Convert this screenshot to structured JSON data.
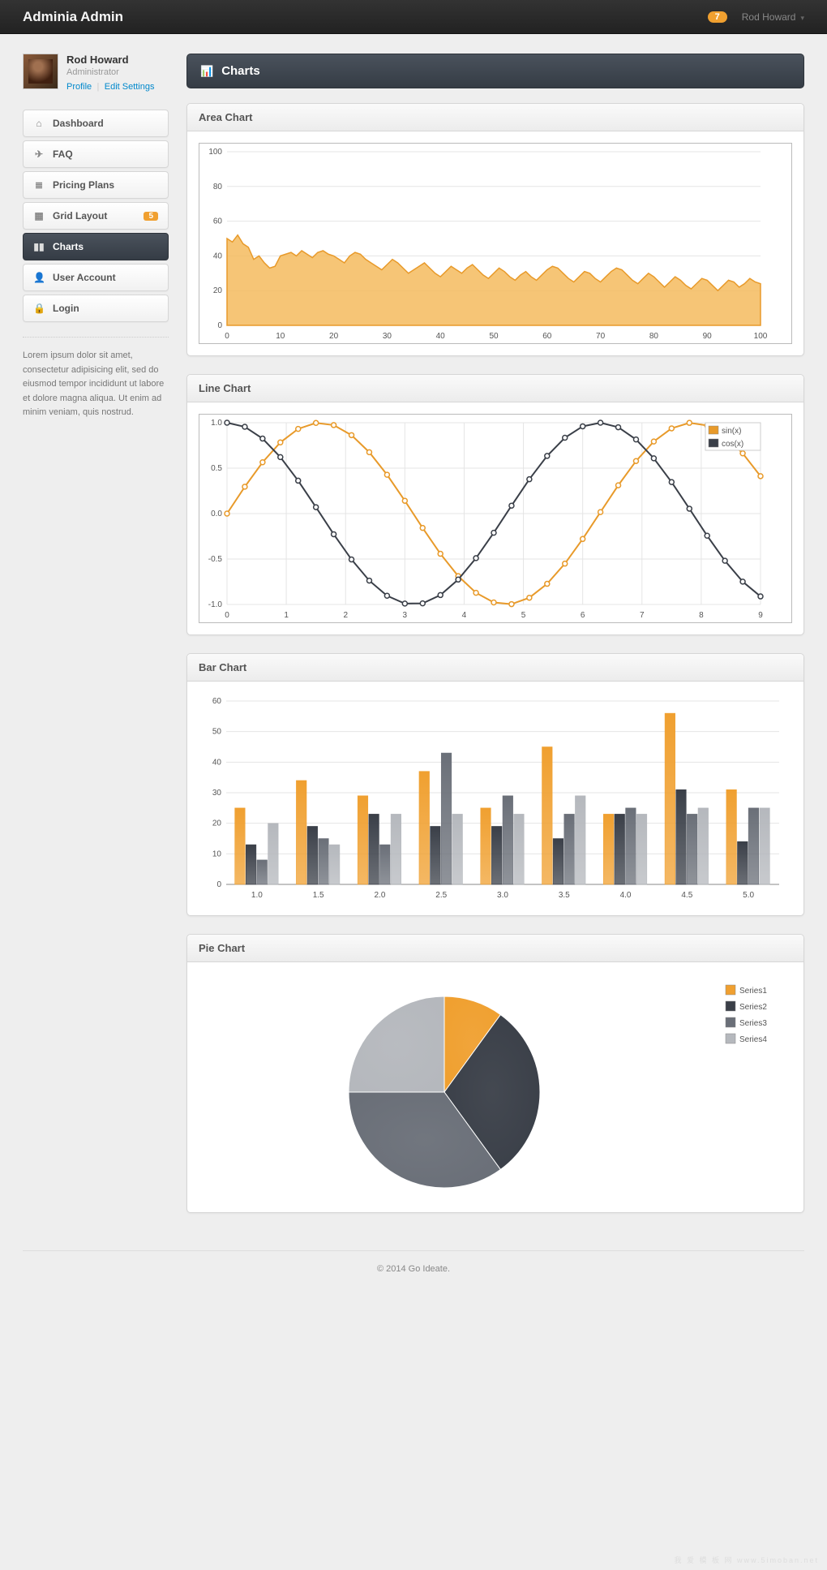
{
  "topbar": {
    "brand": "Adminia Admin",
    "badge": "7",
    "user": "Rod Howard"
  },
  "profile": {
    "name": "Rod Howard",
    "role": "Administrator",
    "link1": "Profile",
    "link2": "Edit Settings"
  },
  "nav": [
    {
      "icon": "⌂",
      "label": "Dashboard"
    },
    {
      "icon": "✈",
      "label": "FAQ"
    },
    {
      "icon": "≣",
      "label": "Pricing Plans"
    },
    {
      "icon": "▦",
      "label": "Grid Layout",
      "badge": "5"
    },
    {
      "icon": "▮▮",
      "label": "Charts",
      "active": true
    },
    {
      "icon": "👤",
      "label": "User Account"
    },
    {
      "icon": "🔒",
      "label": "Login"
    }
  ],
  "side_text": "Lorem ipsum dolor sit amet, consectetur adipisicing elit, sed do eiusmod tempor incididunt ut labore et dolore magna aliqua. Ut enim ad minim veniam, quis nostrud.",
  "page_title": "Charts",
  "area_chart": {
    "title": "Area Chart",
    "type": "area",
    "xlim": [
      0,
      100
    ],
    "ylim": [
      0,
      100
    ],
    "xtick_step": 10,
    "ytick_step": 20,
    "fill_color": "#f5bb5e",
    "stroke_color": "#e89a2a",
    "grid_color": "#e5e5e5",
    "background_color": "#ffffff",
    "data": [
      50,
      48,
      52,
      47,
      45,
      38,
      40,
      36,
      33,
      34,
      40,
      41,
      42,
      40,
      43,
      41,
      39,
      42,
      43,
      41,
      40,
      38,
      36,
      40,
      42,
      41,
      38,
      36,
      34,
      32,
      35,
      38,
      36,
      33,
      30,
      32,
      34,
      36,
      33,
      30,
      28,
      31,
      34,
      32,
      30,
      33,
      35,
      32,
      29,
      27,
      30,
      33,
      31,
      28,
      26,
      29,
      31,
      28,
      26,
      29,
      32,
      34,
      33,
      30,
      27,
      25,
      28,
      31,
      30,
      27,
      25,
      28,
      31,
      33,
      32,
      29,
      26,
      24,
      27,
      30,
      28,
      25,
      22,
      25,
      28,
      26,
      23,
      21,
      24,
      27,
      26,
      23,
      20,
      23,
      26,
      25,
      22,
      24,
      27,
      25,
      24
    ]
  },
  "line_chart": {
    "title": "Line Chart",
    "type": "line",
    "xlim": [
      0,
      9
    ],
    "ylim": [
      -1,
      1
    ],
    "xtick_step": 1,
    "ytick_step": 0.5,
    "grid_color": "#e5e5e5",
    "series": [
      {
        "name": "sin(x)",
        "color": "#e89a2a",
        "marker": "circle"
      },
      {
        "name": "cos(x)",
        "color": "#3a3f48",
        "marker": "circle"
      }
    ],
    "x_points": [
      0,
      0.3,
      0.6,
      0.9,
      1.2,
      1.5,
      1.8,
      2.1,
      2.4,
      2.7,
      3.0,
      3.3,
      3.6,
      3.9,
      4.2,
      4.5,
      4.8,
      5.1,
      5.4,
      5.7,
      6.0,
      6.3,
      6.6,
      6.9,
      7.2,
      7.5,
      7.8,
      8.1,
      8.4,
      8.7,
      9.0
    ]
  },
  "bar_chart": {
    "title": "Bar Chart",
    "type": "bar",
    "xlim": [
      0.75,
      5.25
    ],
    "ylim": [
      0,
      60
    ],
    "xtick_step": 0.5,
    "ytick_step": 10,
    "categories": [
      "1.0",
      "1.5",
      "2.0",
      "2.5",
      "3.0",
      "3.5",
      "4.0",
      "4.5",
      "5.0"
    ],
    "series_colors": [
      "#f0a030",
      "#3a3f48",
      "#6a6f78",
      "#b5b8bd"
    ],
    "series_names": [
      "Series1",
      "Series2",
      "Series3",
      "Series4"
    ],
    "values": [
      [
        25,
        34,
        29,
        37,
        25,
        45,
        23,
        56,
        31
      ],
      [
        13,
        19,
        23,
        19,
        19,
        15,
        23,
        31,
        14
      ],
      [
        8,
        15,
        13,
        43,
        29,
        23,
        25,
        23,
        25
      ],
      [
        20,
        13,
        23,
        23,
        23,
        29,
        23,
        25,
        25
      ]
    ],
    "bar_group_width": 0.36
  },
  "pie_chart": {
    "title": "Pie Chart",
    "type": "pie",
    "series": [
      {
        "name": "Series1",
        "value": 10,
        "color": "#f0a030"
      },
      {
        "name": "Series2",
        "value": 30,
        "color": "#3a3f48"
      },
      {
        "name": "Series3",
        "value": 35,
        "color": "#6a6f78"
      },
      {
        "name": "Series4",
        "value": 25,
        "color": "#b5b8bd"
      }
    ],
    "start_angle": -90
  },
  "footer": "© 2014 Go Ideate.",
  "watermark": "我 爱 模 板 网\nwww.5imoban.net"
}
